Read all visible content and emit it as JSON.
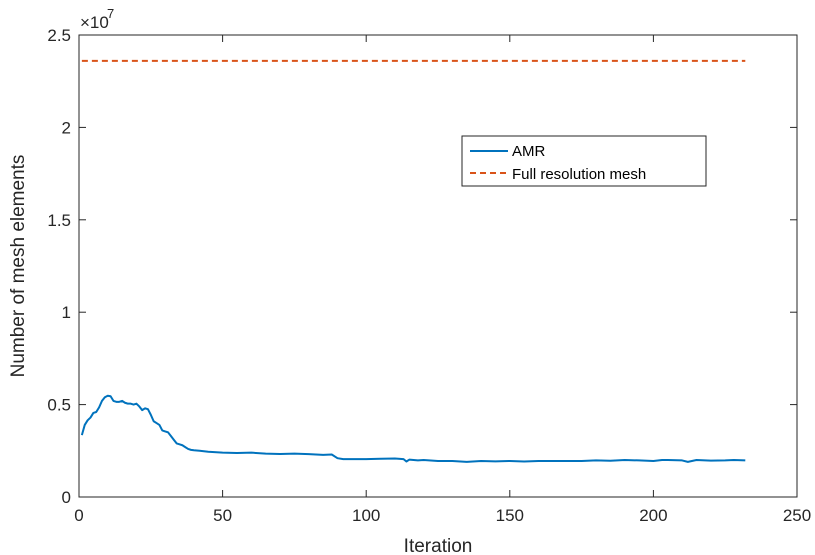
{
  "chart_data": {
    "type": "line",
    "title": "",
    "xlabel": "Iteration",
    "ylabel": "Number of mesh elements",
    "xlim": [
      0,
      250
    ],
    "ylim": [
      0,
      2.5
    ],
    "y_exponent_label": "×10",
    "y_exponent": "7",
    "x_ticks": [
      0,
      50,
      100,
      150,
      200,
      250
    ],
    "x_tick_labels": [
      "0",
      "50",
      "100",
      "150",
      "200",
      "250"
    ],
    "y_ticks": [
      0,
      0.5,
      1,
      1.5,
      2,
      2.5
    ],
    "y_tick_labels": [
      "0",
      "0.5",
      "1",
      "1.5",
      "2",
      "2.5"
    ],
    "grid": false,
    "legend_position": "center-right",
    "series": [
      {
        "name": "AMR",
        "color": "#0072BD",
        "style": "solid",
        "x": [
          1,
          2,
          3,
          4,
          5,
          6,
          7,
          8,
          9,
          10,
          11,
          12,
          13,
          14,
          15,
          16,
          17,
          18,
          19,
          20,
          21,
          22,
          23,
          24,
          25,
          26,
          27,
          28,
          29,
          30,
          31,
          32,
          33,
          34,
          35,
          36,
          37,
          38,
          39,
          40,
          42,
          45,
          50,
          55,
          60,
          65,
          70,
          75,
          80,
          85,
          88,
          90,
          92,
          95,
          100,
          105,
          110,
          113,
          114,
          115,
          118,
          120,
          125,
          130,
          135,
          140,
          145,
          150,
          155,
          160,
          165,
          170,
          175,
          180,
          185,
          190,
          195,
          200,
          203,
          205,
          210,
          212,
          215,
          220,
          225,
          228,
          232
        ],
        "values": [
          0.335,
          0.39,
          0.415,
          0.43,
          0.455,
          0.46,
          0.485,
          0.52,
          0.54,
          0.548,
          0.545,
          0.52,
          0.515,
          0.515,
          0.52,
          0.51,
          0.505,
          0.505,
          0.5,
          0.505,
          0.49,
          0.47,
          0.48,
          0.475,
          0.445,
          0.41,
          0.4,
          0.39,
          0.36,
          0.355,
          0.35,
          0.33,
          0.31,
          0.29,
          0.285,
          0.28,
          0.27,
          0.26,
          0.255,
          0.253,
          0.25,
          0.245,
          0.24,
          0.238,
          0.24,
          0.235,
          0.233,
          0.235,
          0.232,
          0.228,
          0.23,
          0.21,
          0.205,
          0.205,
          0.205,
          0.207,
          0.208,
          0.205,
          0.192,
          0.202,
          0.198,
          0.2,
          0.195,
          0.195,
          0.19,
          0.195,
          0.193,
          0.195,
          0.192,
          0.195,
          0.195,
          0.195,
          0.195,
          0.198,
          0.196,
          0.2,
          0.198,
          0.195,
          0.2,
          0.2,
          0.198,
          0.19,
          0.2,
          0.197,
          0.198,
          0.2,
          0.198
        ]
      },
      {
        "name": "Full resolution mesh",
        "color": "#D95319",
        "style": "dashed",
        "x": [
          1,
          232
        ],
        "values": [
          2.36,
          2.36
        ]
      }
    ]
  }
}
